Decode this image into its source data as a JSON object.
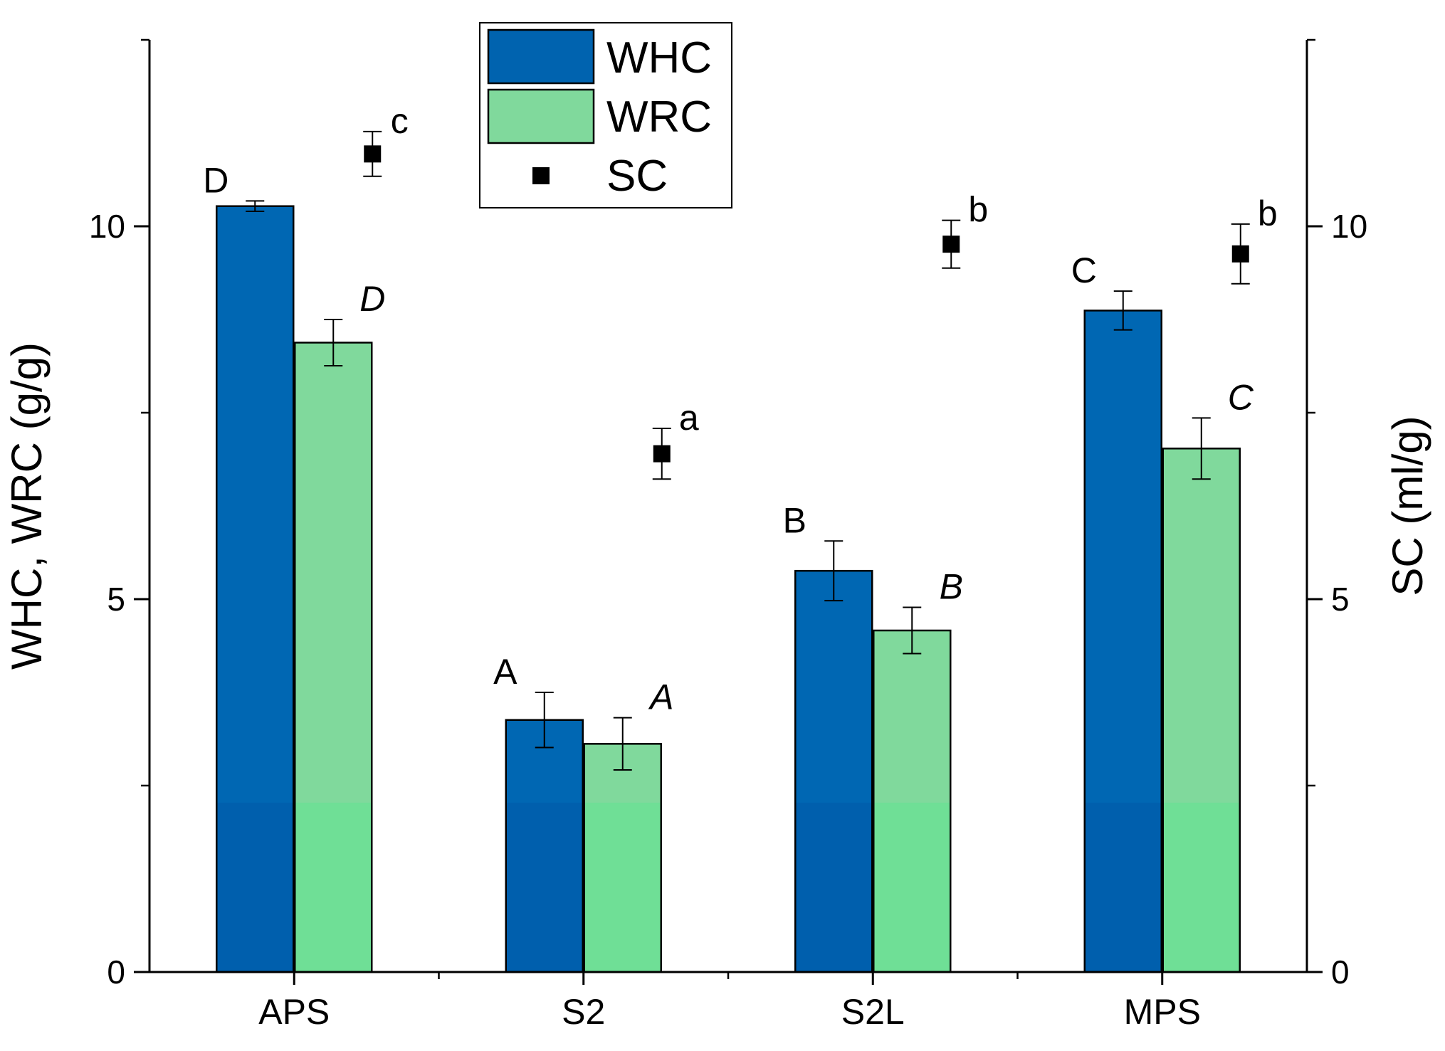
{
  "chart_data": {
    "type": "bar",
    "categories": [
      "APS",
      "S2",
      "S2L",
      "MPS"
    ],
    "series": [
      {
        "name": "WHC",
        "axis": "left",
        "kind": "bar",
        "values": [
          10.27,
          3.38,
          5.38,
          8.87
        ],
        "errors": [
          0.07,
          0.37,
          0.4,
          0.26
        ],
        "labels": [
          "D",
          "A",
          "B",
          "C"
        ],
        "label_style": "normal",
        "color": "#0063af",
        "color_light": "#0064b4"
      },
      {
        "name": "WRC",
        "axis": "left",
        "kind": "bar",
        "values": [
          8.44,
          3.06,
          4.58,
          7.02
        ],
        "errors": [
          0.31,
          0.35,
          0.31,
          0.41
        ],
        "labels": [
          "D",
          "A",
          "B",
          "C"
        ],
        "label_style": "italic",
        "color": "#6fdf96",
        "color_light": "#80d99c"
      },
      {
        "name": "SC",
        "axis": "right",
        "kind": "scatter",
        "values": [
          10.97,
          6.95,
          9.76,
          9.63
        ],
        "errors": [
          0.3,
          0.34,
          0.32,
          0.4
        ],
        "labels": [
          "c",
          "a",
          "b",
          "b"
        ],
        "label_style": "normal",
        "color": "#000000"
      }
    ],
    "ylabel": "WHC, WRC (g/g)",
    "y2label": "SC (ml/g)",
    "xlabel": "",
    "ylim": [
      0,
      12.5
    ],
    "y2lim": [
      0,
      12.5
    ],
    "yticks": [
      "0",
      "5",
      "10"
    ],
    "y2ticks": [
      "0",
      "5",
      "10"
    ],
    "legend_position": "top-center",
    "grid": false
  }
}
